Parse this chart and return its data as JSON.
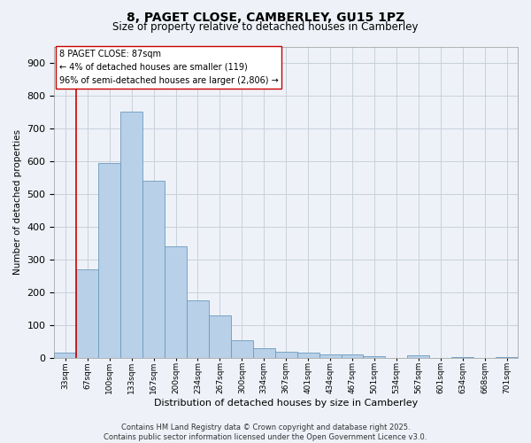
{
  "title_line1": "8, PAGET CLOSE, CAMBERLEY, GU15 1PZ",
  "title_line2": "Size of property relative to detached houses in Camberley",
  "xlabel": "Distribution of detached houses by size in Camberley",
  "ylabel": "Number of detached properties",
  "categories": [
    "33sqm",
    "67sqm",
    "100sqm",
    "133sqm",
    "167sqm",
    "200sqm",
    "234sqm",
    "267sqm",
    "300sqm",
    "334sqm",
    "367sqm",
    "401sqm",
    "434sqm",
    "467sqm",
    "501sqm",
    "534sqm",
    "567sqm",
    "601sqm",
    "634sqm",
    "668sqm",
    "701sqm"
  ],
  "values": [
    15,
    270,
    595,
    750,
    540,
    340,
    175,
    130,
    55,
    30,
    20,
    15,
    10,
    10,
    5,
    0,
    8,
    0,
    3,
    0,
    3
  ],
  "bar_color": "#b8d0e8",
  "bar_edge_color": "#6a9abf",
  "vline_color": "#cc0000",
  "vline_x_index": 1.5,
  "annotation_box_text": "8 PAGET CLOSE: 87sqm\n← 4% of detached houses are smaller (119)\n96% of semi-detached houses are larger (2,806) →",
  "annotation_box_edgecolor": "#cc0000",
  "annotation_box_facecolor": "#ffffff",
  "ylim": [
    0,
    950
  ],
  "yticks": [
    0,
    100,
    200,
    300,
    400,
    500,
    600,
    700,
    800,
    900
  ],
  "background_color": "#eef2f8",
  "grid_color": "#c8d0dc",
  "footnote": "Contains HM Land Registry data © Crown copyright and database right 2025.\nContains public sector information licensed under the Open Government Licence v3.0."
}
